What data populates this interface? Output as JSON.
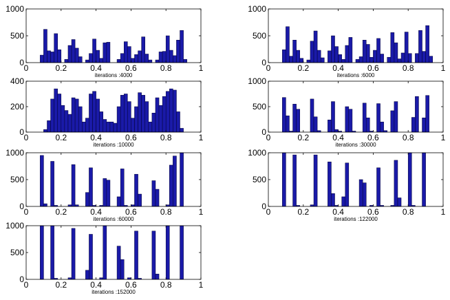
{
  "figure": {
    "bar_color": "#1a1aa8",
    "bar_edge": "#000033"
  },
  "chart_data": [
    {
      "type": "bar",
      "title": "",
      "xlabel": "iterations :4000",
      "ylabel": "",
      "xlim": [
        0,
        1
      ],
      "ylim": [
        0,
        1000
      ],
      "xticks": [
        0,
        0.2,
        0.4,
        0.6,
        0.8,
        1
      ],
      "xtick_labels": [
        "0",
        "0.2",
        "0.4",
        "0.6",
        "0.8",
        "1"
      ],
      "yticks": [
        0,
        500,
        1000
      ],
      "ytick_labels": [
        "0",
        "500",
        "1000"
      ],
      "bin_width": 0.02,
      "bins": [
        [
          0.09,
          140
        ],
        [
          0.11,
          620
        ],
        [
          0.13,
          220
        ],
        [
          0.15,
          200
        ],
        [
          0.17,
          540
        ],
        [
          0.19,
          240
        ],
        [
          0.23,
          60
        ],
        [
          0.25,
          320
        ],
        [
          0.27,
          430
        ],
        [
          0.29,
          270
        ],
        [
          0.31,
          110
        ],
        [
          0.35,
          50
        ],
        [
          0.37,
          170
        ],
        [
          0.39,
          440
        ],
        [
          0.41,
          230
        ],
        [
          0.43,
          80
        ],
        [
          0.45,
          370
        ],
        [
          0.47,
          380
        ],
        [
          0.53,
          60
        ],
        [
          0.55,
          170
        ],
        [
          0.57,
          390
        ],
        [
          0.59,
          300
        ],
        [
          0.61,
          80
        ],
        [
          0.63,
          150
        ],
        [
          0.65,
          220
        ],
        [
          0.67,
          480
        ],
        [
          0.69,
          160
        ],
        [
          0.71,
          50
        ],
        [
          0.75,
          50
        ],
        [
          0.77,
          200
        ],
        [
          0.79,
          210
        ],
        [
          0.81,
          500
        ],
        [
          0.83,
          230
        ],
        [
          0.85,
          130
        ],
        [
          0.87,
          420
        ],
        [
          0.89,
          600
        ],
        [
          0.91,
          60
        ]
      ]
    },
    {
      "type": "bar",
      "title": "",
      "xlabel": "iterations :6000",
      "ylabel": "",
      "xlim": [
        0,
        1
      ],
      "ylim": [
        0,
        1000
      ],
      "xticks": [
        0,
        0.2,
        0.4,
        0.6,
        0.8,
        1
      ],
      "xtick_labels": [
        "0",
        "0.2",
        "0.4",
        "0.6",
        "0.8",
        "1"
      ],
      "yticks": [
        0,
        500,
        1000
      ],
      "ytick_labels": [
        "0",
        "500",
        "1000"
      ],
      "bin_width": 0.02,
      "bins": [
        [
          0.09,
          240
        ],
        [
          0.11,
          670
        ],
        [
          0.13,
          120
        ],
        [
          0.15,
          420
        ],
        [
          0.17,
          230
        ],
        [
          0.19,
          80
        ],
        [
          0.23,
          50
        ],
        [
          0.25,
          400
        ],
        [
          0.27,
          590
        ],
        [
          0.29,
          230
        ],
        [
          0.31,
          90
        ],
        [
          0.35,
          220
        ],
        [
          0.37,
          500
        ],
        [
          0.39,
          300
        ],
        [
          0.41,
          150
        ],
        [
          0.43,
          60
        ],
        [
          0.45,
          320
        ],
        [
          0.47,
          470
        ],
        [
          0.51,
          60
        ],
        [
          0.53,
          110
        ],
        [
          0.55,
          420
        ],
        [
          0.57,
          340
        ],
        [
          0.59,
          100
        ],
        [
          0.61,
          230
        ],
        [
          0.63,
          450
        ],
        [
          0.65,
          160
        ],
        [
          0.69,
          100
        ],
        [
          0.71,
          560
        ],
        [
          0.73,
          370
        ],
        [
          0.75,
          70
        ],
        [
          0.77,
          180
        ],
        [
          0.79,
          570
        ],
        [
          0.81,
          170
        ],
        [
          0.85,
          170
        ],
        [
          0.87,
          600
        ],
        [
          0.89,
          210
        ],
        [
          0.91,
          690
        ],
        [
          0.93,
          120
        ]
      ]
    },
    {
      "type": "bar",
      "title": "",
      "xlabel": "iterations :10000",
      "ylabel": "",
      "xlim": [
        0,
        1
      ],
      "ylim": [
        0,
        400
      ],
      "xticks": [
        0,
        0.2,
        0.4,
        0.6,
        0.8,
        1
      ],
      "xtick_labels": [
        "0",
        "0.2",
        "0.4",
        "0.6",
        "0.8",
        "1"
      ],
      "yticks": [
        0,
        200,
        400
      ],
      "ytick_labels": [
        "0",
        "200",
        "400"
      ],
      "bin_width": 0.02,
      "bins": [
        [
          0.11,
          20
        ],
        [
          0.13,
          90
        ],
        [
          0.15,
          260
        ],
        [
          0.17,
          340
        ],
        [
          0.19,
          300
        ],
        [
          0.21,
          210
        ],
        [
          0.23,
          170
        ],
        [
          0.25,
          140
        ],
        [
          0.27,
          270
        ],
        [
          0.29,
          260
        ],
        [
          0.31,
          200
        ],
        [
          0.33,
          80
        ],
        [
          0.35,
          110
        ],
        [
          0.37,
          300
        ],
        [
          0.39,
          320
        ],
        [
          0.41,
          260
        ],
        [
          0.43,
          160
        ],
        [
          0.45,
          100
        ],
        [
          0.47,
          80
        ],
        [
          0.49,
          80
        ],
        [
          0.51,
          70
        ],
        [
          0.53,
          200
        ],
        [
          0.55,
          290
        ],
        [
          0.57,
          300
        ],
        [
          0.59,
          240
        ],
        [
          0.61,
          110
        ],
        [
          0.63,
          200
        ],
        [
          0.65,
          310
        ],
        [
          0.67,
          290
        ],
        [
          0.69,
          240
        ],
        [
          0.71,
          80
        ],
        [
          0.73,
          150
        ],
        [
          0.75,
          270
        ],
        [
          0.77,
          210
        ],
        [
          0.79,
          280
        ],
        [
          0.81,
          320
        ],
        [
          0.83,
          340
        ],
        [
          0.85,
          330
        ],
        [
          0.87,
          160
        ],
        [
          0.89,
          30
        ]
      ]
    },
    {
      "type": "bar",
      "title": "",
      "xlabel": "iterations :30000",
      "ylabel": "",
      "xlim": [
        0,
        1
      ],
      "ylim": [
        0,
        1000
      ],
      "xticks": [
        0,
        0.2,
        0.4,
        0.6,
        0.8,
        1
      ],
      "xtick_labels": [
        "0",
        "0.2",
        "0.4",
        "0.6",
        "0.8",
        "1"
      ],
      "yticks": [
        0,
        500,
        1000
      ],
      "ytick_labels": [
        "0",
        "500",
        "1000"
      ],
      "bin_width": 0.02,
      "bins": [
        [
          0.09,
          680
        ],
        [
          0.11,
          320
        ],
        [
          0.13,
          20
        ],
        [
          0.15,
          550
        ],
        [
          0.17,
          450
        ],
        [
          0.25,
          650
        ],
        [
          0.27,
          300
        ],
        [
          0.29,
          30
        ],
        [
          0.35,
          240
        ],
        [
          0.37,
          600
        ],
        [
          0.39,
          50
        ],
        [
          0.41,
          20
        ],
        [
          0.45,
          500
        ],
        [
          0.47,
          450
        ],
        [
          0.49,
          20
        ],
        [
          0.55,
          570
        ],
        [
          0.57,
          280
        ],
        [
          0.59,
          20
        ],
        [
          0.63,
          560
        ],
        [
          0.65,
          200
        ],
        [
          0.67,
          30
        ],
        [
          0.71,
          420
        ],
        [
          0.73,
          600
        ],
        [
          0.83,
          290
        ],
        [
          0.85,
          700
        ],
        [
          0.89,
          280
        ],
        [
          0.91,
          720
        ]
      ]
    },
    {
      "type": "bar",
      "title": "",
      "xlabel": "iterations :60000",
      "ylabel": "",
      "xlim": [
        0,
        1
      ],
      "ylim": [
        0,
        1000
      ],
      "xticks": [
        0,
        0.2,
        0.4,
        0.6,
        0.8,
        1
      ],
      "xtick_labels": [
        "0",
        "0.2",
        "0.4",
        "0.6",
        "0.8",
        "1"
      ],
      "yticks": [
        0,
        500,
        1000
      ],
      "ytick_labels": [
        "0",
        "500",
        "1000"
      ],
      "bin_width": 0.02,
      "bins": [
        [
          0.09,
          950
        ],
        [
          0.11,
          50
        ],
        [
          0.15,
          840
        ],
        [
          0.17,
          20
        ],
        [
          0.25,
          30
        ],
        [
          0.27,
          780
        ],
        [
          0.29,
          30
        ],
        [
          0.35,
          260
        ],
        [
          0.37,
          720
        ],
        [
          0.39,
          20
        ],
        [
          0.43,
          20
        ],
        [
          0.45,
          520
        ],
        [
          0.47,
          490
        ],
        [
          0.53,
          180
        ],
        [
          0.55,
          700
        ],
        [
          0.57,
          20
        ],
        [
          0.61,
          30
        ],
        [
          0.63,
          600
        ],
        [
          0.65,
          230
        ],
        [
          0.73,
          480
        ],
        [
          0.75,
          320
        ],
        [
          0.81,
          30
        ],
        [
          0.83,
          770
        ],
        [
          0.85,
          940
        ],
        [
          0.89,
          1000
        ]
      ]
    },
    {
      "type": "bar",
      "title": "",
      "xlabel": "iterations :122000",
      "ylabel": "",
      "xlim": [
        0,
        1
      ],
      "ylim": [
        0,
        1000
      ],
      "xticks": [
        0,
        0.2,
        0.4,
        0.6,
        0.8,
        1
      ],
      "xtick_labels": [
        "0",
        "0.2",
        "0.4",
        "0.6",
        "0.8",
        "1"
      ],
      "yticks": [
        0,
        500,
        1000
      ],
      "ytick_labels": [
        "0",
        "500",
        "1000"
      ],
      "bin_width": 0.02,
      "bins": [
        [
          0.09,
          1000
        ],
        [
          0.15,
          960
        ],
        [
          0.17,
          20
        ],
        [
          0.25,
          30
        ],
        [
          0.27,
          960
        ],
        [
          0.35,
          830
        ],
        [
          0.37,
          240
        ],
        [
          0.39,
          20
        ],
        [
          0.43,
          180
        ],
        [
          0.45,
          810
        ],
        [
          0.53,
          500
        ],
        [
          0.55,
          440
        ],
        [
          0.59,
          20
        ],
        [
          0.63,
          720
        ],
        [
          0.65,
          20
        ],
        [
          0.71,
          20
        ],
        [
          0.73,
          860
        ],
        [
          0.75,
          160
        ],
        [
          0.81,
          1000
        ],
        [
          0.83,
          20
        ],
        [
          0.89,
          1000
        ]
      ]
    },
    {
      "type": "bar",
      "title": "",
      "xlabel": "iterations :152000",
      "ylabel": "",
      "xlim": [
        0,
        1
      ],
      "ylim": [
        0,
        1000
      ],
      "xticks": [
        0,
        0.2,
        0.4,
        0.6,
        0.8,
        1
      ],
      "xtick_labels": [
        "0",
        "0.2",
        "0.4",
        "0.6",
        "0.8",
        "1"
      ],
      "yticks": [
        0,
        500,
        1000
      ],
      "ytick_labels": [
        "0",
        "500",
        "1000"
      ],
      "bin_width": 0.02,
      "bins": [
        [
          0.09,
          1000
        ],
        [
          0.15,
          1000
        ],
        [
          0.17,
          20
        ],
        [
          0.25,
          30
        ],
        [
          0.27,
          950
        ],
        [
          0.35,
          170
        ],
        [
          0.37,
          840
        ],
        [
          0.43,
          30
        ],
        [
          0.45,
          1000
        ],
        [
          0.53,
          620
        ],
        [
          0.55,
          370
        ],
        [
          0.59,
          30
        ],
        [
          0.63,
          900
        ],
        [
          0.65,
          20
        ],
        [
          0.73,
          900
        ],
        [
          0.75,
          100
        ],
        [
          0.81,
          1000
        ],
        [
          0.89,
          1000
        ]
      ]
    }
  ]
}
